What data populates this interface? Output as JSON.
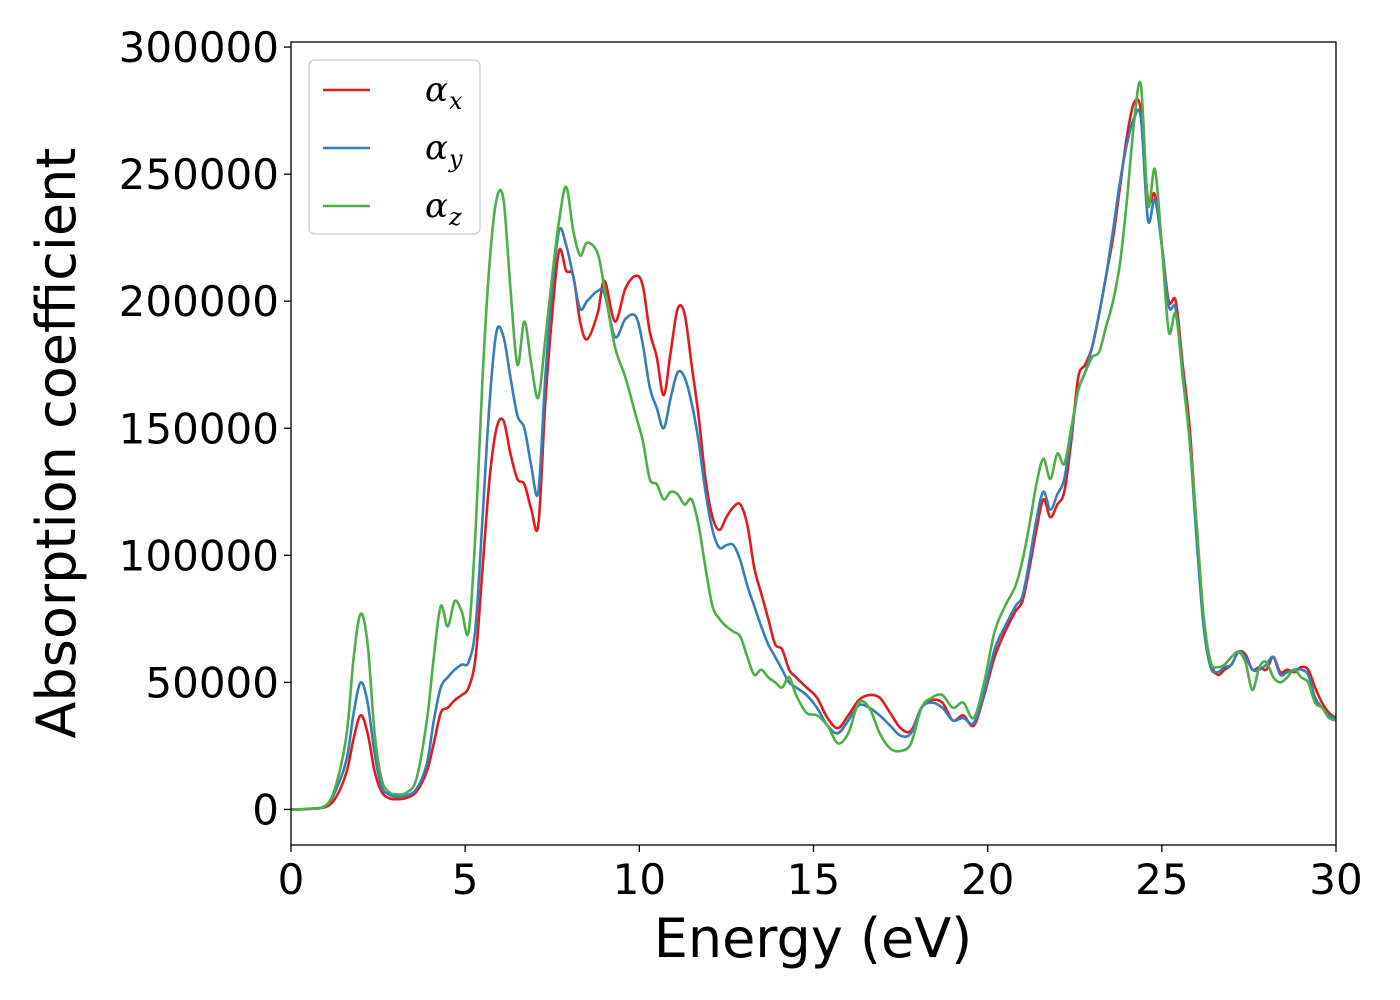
{
  "chart_data": {
    "type": "line",
    "xlabel": "Energy (eV)",
    "ylabel": "Absorption coefficient",
    "xlim": [
      0,
      30
    ],
    "ylim": [
      -14000,
      302000
    ],
    "xticks": [
      0,
      5,
      10,
      15,
      20,
      25,
      30
    ],
    "xtick_labels": [
      "0",
      "5",
      "10",
      "15",
      "20",
      "25",
      "30"
    ],
    "yticks": [
      0,
      50000,
      100000,
      150000,
      200000,
      250000,
      300000
    ],
    "ytick_labels": [
      "0",
      "50000",
      "100000",
      "150000",
      "200000",
      "250000",
      "300000"
    ],
    "grid": false,
    "legend_position": "top-left",
    "series": [
      {
        "name": "αx",
        "legend_base": "α",
        "legend_sub": "x",
        "color": "#e41a1c",
        "x": [
          0,
          0.5,
          1.0,
          1.3,
          1.6,
          1.8,
          2.0,
          2.2,
          2.4,
          2.6,
          2.8,
          3.0,
          3.3,
          3.6,
          3.9,
          4.1,
          4.3,
          4.5,
          4.7,
          4.9,
          5.1,
          5.3,
          5.5,
          5.7,
          5.9,
          6.1,
          6.3,
          6.5,
          6.7,
          6.9,
          7.1,
          7.3,
          7.5,
          7.7,
          7.9,
          8.1,
          8.3,
          8.5,
          8.8,
          9.0,
          9.3,
          9.6,
          9.9,
          10.1,
          10.3,
          10.5,
          10.7,
          10.9,
          11.1,
          11.3,
          11.5,
          11.7,
          11.9,
          12.1,
          12.3,
          12.5,
          12.7,
          12.9,
          13.1,
          13.3,
          13.5,
          13.7,
          13.9,
          14.1,
          14.3,
          14.5,
          14.8,
          15.1,
          15.4,
          15.7,
          16.0,
          16.3,
          16.6,
          16.9,
          17.2,
          17.5,
          17.8,
          18.1,
          18.4,
          18.7,
          19.0,
          19.3,
          19.6,
          19.9,
          20.2,
          20.5,
          20.8,
          21.0,
          21.2,
          21.4,
          21.6,
          21.8,
          22.0,
          22.2,
          22.4,
          22.6,
          22.8,
          23.0,
          23.2,
          23.4,
          23.6,
          23.8,
          24.0,
          24.2,
          24.4,
          24.6,
          24.8,
          25.0,
          25.2,
          25.4,
          25.6,
          25.8,
          26.0,
          26.2,
          26.4,
          26.6,
          26.8,
          27.0,
          27.2,
          27.4,
          27.6,
          27.8,
          28.0,
          28.2,
          28.4,
          28.6,
          28.8,
          29.0,
          29.2,
          29.4,
          29.6,
          29.8,
          30.0
        ],
        "y": [
          0,
          200,
          1000,
          5000,
          15000,
          28000,
          37000,
          30000,
          15000,
          7000,
          4500,
          4000,
          4500,
          7000,
          15000,
          26000,
          38000,
          40000,
          43000,
          45000,
          48000,
          60000,
          95000,
          130000,
          150000,
          153000,
          140000,
          130000,
          128000,
          118000,
          112000,
          160000,
          195000,
          220000,
          212000,
          210000,
          192000,
          185000,
          195000,
          208000,
          192000,
          205000,
          210000,
          206000,
          188000,
          178000,
          163000,
          180000,
          197000,
          195000,
          175000,
          155000,
          130000,
          115000,
          110000,
          115000,
          119000,
          120000,
          112000,
          95000,
          85000,
          75000,
          65000,
          63000,
          55000,
          52000,
          48000,
          44000,
          36000,
          32000,
          37000,
          43000,
          45000,
          44000,
          38000,
          32000,
          31000,
          40000,
          43000,
          42000,
          35000,
          37000,
          33000,
          45000,
          60000,
          70000,
          78000,
          82000,
          95000,
          110000,
          122000,
          115000,
          120000,
          125000,
          145000,
          170000,
          175000,
          182000,
          195000,
          210000,
          225000,
          245000,
          265000,
          278000,
          275000,
          240000,
          242000,
          222000,
          200000,
          200000,
          175000,
          150000,
          110000,
          75000,
          58000,
          53000,
          55000,
          57000,
          62000,
          61000,
          55000,
          56000,
          55000,
          60000,
          54000,
          55000,
          54000,
          56000,
          55000,
          48000,
          42000,
          38000,
          36000
        ],
        "values_note": ""
      },
      {
        "name": "αy",
        "legend_base": "α",
        "legend_sub": "y",
        "color": "#377eb8",
        "x": [
          0,
          0.5,
          1.0,
          1.3,
          1.6,
          1.8,
          2.0,
          2.2,
          2.4,
          2.6,
          2.8,
          3.0,
          3.3,
          3.6,
          3.9,
          4.1,
          4.3,
          4.5,
          4.7,
          4.9,
          5.1,
          5.3,
          5.5,
          5.7,
          5.9,
          6.1,
          6.3,
          6.5,
          6.7,
          6.9,
          7.1,
          7.3,
          7.5,
          7.7,
          7.9,
          8.1,
          8.3,
          8.5,
          8.8,
          9.0,
          9.3,
          9.6,
          9.9,
          10.1,
          10.3,
          10.5,
          10.7,
          10.9,
          11.1,
          11.3,
          11.5,
          11.7,
          11.9,
          12.1,
          12.3,
          12.5,
          12.7,
          12.9,
          13.1,
          13.3,
          13.5,
          13.7,
          13.9,
          14.1,
          14.3,
          14.5,
          14.8,
          15.1,
          15.4,
          15.7,
          16.0,
          16.3,
          16.6,
          16.9,
          17.2,
          17.5,
          17.8,
          18.1,
          18.4,
          18.7,
          19.0,
          19.3,
          19.6,
          19.9,
          20.2,
          20.5,
          20.8,
          21.0,
          21.2,
          21.4,
          21.6,
          21.8,
          22.0,
          22.2,
          22.4,
          22.6,
          22.8,
          23.0,
          23.2,
          23.4,
          23.6,
          23.8,
          24.0,
          24.2,
          24.4,
          24.6,
          24.8,
          25.0,
          25.2,
          25.4,
          25.6,
          25.8,
          26.0,
          26.2,
          26.4,
          26.6,
          26.8,
          27.0,
          27.2,
          27.4,
          27.6,
          27.8,
          28.0,
          28.2,
          28.4,
          28.6,
          28.8,
          29.0,
          29.2,
          29.4,
          29.6,
          29.8,
          30.0
        ],
        "y": [
          0,
          200,
          1500,
          8000,
          20000,
          38000,
          50000,
          42000,
          22000,
          9000,
          6000,
          5000,
          5500,
          8000,
          18000,
          35000,
          48000,
          52000,
          55000,
          57000,
          58000,
          72000,
          115000,
          160000,
          188000,
          186000,
          170000,
          155000,
          150000,
          135000,
          125000,
          170000,
          205000,
          228000,
          222000,
          210000,
          197000,
          200000,
          204000,
          203000,
          186000,
          193000,
          194000,
          183000,
          166000,
          158000,
          150000,
          162000,
          172000,
          170000,
          160000,
          145000,
          125000,
          110000,
          103000,
          104000,
          104000,
          98000,
          88000,
          80000,
          72000,
          65000,
          60000,
          55000,
          50000,
          48000,
          45000,
          40000,
          33000,
          30000,
          35000,
          41000,
          40000,
          37000,
          33000,
          29000,
          30000,
          40000,
          42000,
          40000,
          35000,
          36000,
          34000,
          46000,
          63000,
          72000,
          80000,
          84000,
          98000,
          114000,
          125000,
          118000,
          124000,
          130000,
          148000,
          165000,
          172000,
          182000,
          195000,
          210000,
          228000,
          247000,
          262000,
          272000,
          272000,
          232000,
          240000,
          222000,
          198000,
          197000,
          172000,
          145000,
          106000,
          72000,
          56000,
          54000,
          56000,
          57000,
          62000,
          60000,
          55000,
          55000,
          57000,
          60000,
          53000,
          54000,
          55000,
          55000,
          53000,
          44000,
          40000,
          37000,
          36000
        ],
        "values_note": ""
      },
      {
        "name": "αz",
        "legend_base": "α",
        "legend_sub": "z",
        "color": "#4daf4a",
        "x": [
          0,
          0.5,
          1.0,
          1.3,
          1.6,
          1.8,
          2.0,
          2.2,
          2.4,
          2.6,
          2.8,
          3.0,
          3.3,
          3.6,
          3.9,
          4.1,
          4.3,
          4.5,
          4.7,
          4.9,
          5.1,
          5.3,
          5.5,
          5.7,
          5.9,
          6.1,
          6.3,
          6.5,
          6.7,
          6.9,
          7.1,
          7.3,
          7.5,
          7.7,
          7.9,
          8.1,
          8.3,
          8.5,
          8.8,
          9.0,
          9.3,
          9.6,
          9.9,
          10.1,
          10.3,
          10.5,
          10.7,
          10.9,
          11.1,
          11.3,
          11.5,
          11.7,
          11.9,
          12.1,
          12.3,
          12.5,
          12.7,
          12.9,
          13.1,
          13.3,
          13.5,
          13.7,
          13.9,
          14.1,
          14.3,
          14.5,
          14.8,
          15.1,
          15.4,
          15.7,
          16.0,
          16.3,
          16.6,
          16.9,
          17.2,
          17.5,
          17.8,
          18.1,
          18.4,
          18.7,
          19.0,
          19.3,
          19.6,
          19.9,
          20.2,
          20.5,
          20.8,
          21.0,
          21.2,
          21.4,
          21.6,
          21.8,
          22.0,
          22.2,
          22.4,
          22.6,
          22.8,
          23.0,
          23.2,
          23.4,
          23.6,
          23.8,
          24.0,
          24.2,
          24.4,
          24.6,
          24.8,
          25.0,
          25.2,
          25.4,
          25.6,
          25.8,
          26.0,
          26.2,
          26.4,
          26.6,
          26.8,
          27.0,
          27.2,
          27.4,
          27.6,
          27.8,
          28.0,
          28.2,
          28.4,
          28.6,
          28.8,
          29.0,
          29.2,
          29.4,
          29.6,
          29.8,
          30.0
        ],
        "y": [
          0,
          200,
          1500,
          10000,
          30000,
          60000,
          77000,
          65000,
          30000,
          12000,
          7000,
          6000,
          6500,
          12000,
          35000,
          60000,
          80000,
          72000,
          82000,
          78000,
          70000,
          110000,
          170000,
          215000,
          240000,
          240000,
          205000,
          175000,
          192000,
          175000,
          162000,
          185000,
          210000,
          232000,
          245000,
          228000,
          218000,
          223000,
          219000,
          205000,
          182000,
          170000,
          155000,
          145000,
          130000,
          128000,
          122000,
          125000,
          124000,
          120000,
          122000,
          112000,
          95000,
          80000,
          75000,
          72000,
          70000,
          68000,
          60000,
          53000,
          55000,
          52000,
          50000,
          48000,
          52000,
          45000,
          38000,
          37000,
          33000,
          26000,
          30000,
          42000,
          40000,
          30000,
          24000,
          23000,
          26000,
          40000,
          44000,
          45000,
          40000,
          42000,
          36000,
          50000,
          70000,
          80000,
          88000,
          98000,
          112000,
          128000,
          138000,
          130000,
          140000,
          136000,
          150000,
          165000,
          172000,
          178000,
          180000,
          190000,
          200000,
          215000,
          240000,
          270000,
          285000,
          238000,
          252000,
          222000,
          188000,
          195000,
          170000,
          145000,
          112000,
          76000,
          58000,
          56000,
          57000,
          60000,
          62000,
          58000,
          47000,
          56000,
          58000,
          52000,
          50000,
          52000,
          55000,
          52000,
          50000,
          42000,
          40000,
          36000,
          35000
        ],
        "values_note": ""
      }
    ]
  }
}
